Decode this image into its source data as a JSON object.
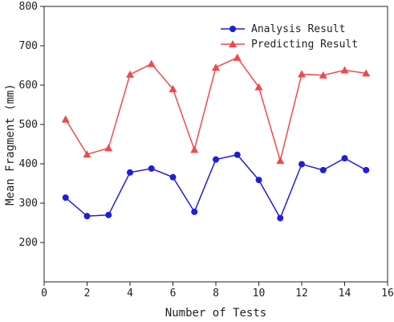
{
  "chart_data": {
    "type": "line",
    "title": "",
    "xlabel": "Number of Tests",
    "ylabel": "Mean Fragment (mm)",
    "xlim": [
      0,
      16
    ],
    "ylim": [
      100,
      800
    ],
    "xticks": [
      0,
      2,
      4,
      6,
      8,
      10,
      12,
      14,
      16
    ],
    "yticks": [
      200,
      300,
      400,
      500,
      600,
      700,
      800
    ],
    "grid": false,
    "legend_position": "top-right",
    "x": [
      1,
      2,
      3,
      4,
      5,
      6,
      7,
      8,
      9,
      10,
      11,
      12,
      13,
      14,
      15
    ],
    "series": [
      {
        "name": "Analysis Result",
        "color": "#1f1fd6",
        "marker": "circle",
        "values": [
          314,
          267,
          270,
          378,
          388,
          366,
          278,
          411,
          423,
          359,
          262,
          399,
          384,
          414,
          384
        ]
      },
      {
        "name": "Predicting Result",
        "color": "#ef4a4a",
        "marker": "triangle",
        "values": [
          513,
          424,
          440,
          627,
          654,
          590,
          436,
          645,
          670,
          595,
          408,
          628,
          625,
          638,
          630
        ]
      }
    ]
  }
}
